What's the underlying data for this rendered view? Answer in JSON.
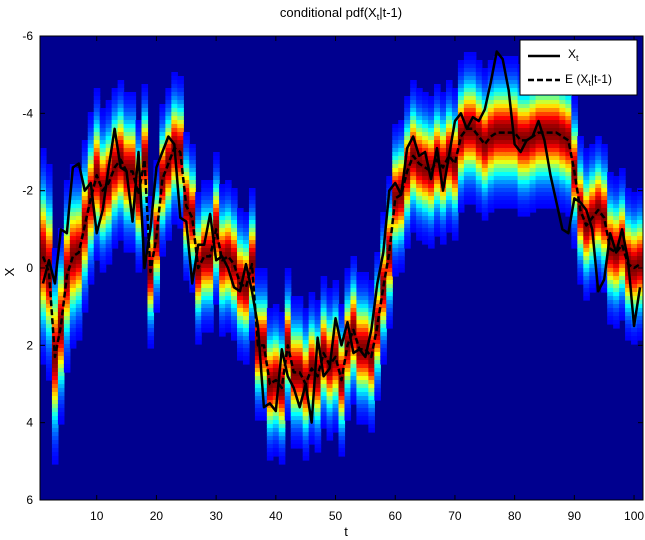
{
  "chart_data": {
    "type": "heatmap",
    "title": {
      "main": "conditional pdf(X",
      "sub1": "t",
      "mid": "|t-1)"
    },
    "xlabel": "t",
    "ylabel": "X",
    "xlim": [
      0.5,
      101.5
    ],
    "ylim": [
      6,
      -6
    ],
    "y_reversed": true,
    "x_ticks": [
      10,
      20,
      30,
      40,
      50,
      60,
      70,
      80,
      90,
      100
    ],
    "x_tick_labels": [
      "10",
      "20",
      "30",
      "40",
      "50",
      "60",
      "70",
      "80",
      "90",
      "100"
    ],
    "y_ticks": [
      -6,
      -4,
      -2,
      0,
      2,
      4,
      6
    ],
    "y_tick_labels": [
      "-6",
      "-4",
      "-2",
      "0",
      "2",
      "4",
      "6"
    ],
    "heatmap": {
      "colormap": "jet",
      "description_of_cells": "conditional density of X_t given t-1, centered on E(X_t|t-1)",
      "spread_sd": [
        1.0,
        1.0,
        1.0,
        0.9,
        0.9,
        0.85,
        0.8,
        0.8,
        0.8,
        0.8,
        0.75,
        0.75,
        0.75,
        0.75,
        0.75,
        0.75,
        0.7,
        0.7,
        0.7,
        0.7,
        0.7,
        0.7,
        0.7,
        0.7,
        0.7,
        0.7,
        0.7,
        0.7,
        0.7,
        0.7,
        0.7,
        0.7,
        0.7,
        0.7,
        0.7,
        0.7,
        0.7,
        0.7,
        0.7,
        0.7,
        0.7,
        0.7,
        0.7,
        0.7,
        0.7,
        0.7,
        0.7,
        0.7,
        0.7,
        0.7,
        0.7,
        0.7,
        0.7,
        0.7,
        0.7,
        0.7,
        0.7,
        0.7,
        0.7,
        0.7,
        0.7,
        0.7,
        0.7,
        0.7,
        0.7,
        0.7,
        0.7,
        0.7,
        0.7,
        0.7,
        0.7,
        0.7,
        0.7,
        0.7,
        0.7,
        0.7,
        0.7,
        0.7,
        0.7,
        0.7,
        0.7,
        0.7,
        0.7,
        0.7,
        0.7,
        0.7,
        0.7,
        0.7,
        0.7,
        0.7,
        0.7,
        0.7,
        0.7,
        0.7,
        0.7,
        0.7,
        0.7,
        0.7,
        0.7,
        0.7,
        0.7
      ]
    },
    "series": [
      {
        "name": "X_t",
        "style": "solid",
        "color": "#000000",
        "x": [
          1,
          2,
          3,
          4,
          5,
          6,
          7,
          8,
          9,
          10,
          11,
          12,
          13,
          14,
          15,
          16,
          17,
          18,
          19,
          20,
          21,
          22,
          23,
          24,
          25,
          26,
          27,
          28,
          29,
          30,
          31,
          32,
          33,
          34,
          35,
          36,
          37,
          38,
          39,
          40,
          41,
          42,
          43,
          44,
          45,
          46,
          47,
          48,
          49,
          50,
          51,
          52,
          53,
          54,
          55,
          56,
          57,
          58,
          59,
          60,
          61,
          62,
          63,
          64,
          65,
          66,
          67,
          68,
          69,
          70,
          71,
          72,
          73,
          74,
          75,
          76,
          77,
          78,
          79,
          80,
          81,
          82,
          83,
          84,
          85,
          86,
          87,
          88,
          89,
          90,
          91,
          92,
          93,
          94,
          95,
          96,
          97,
          98,
          99,
          100,
          101
        ],
        "y": [
          0.4,
          -0.2,
          0.4,
          -1.0,
          -0.9,
          -2.6,
          -2.7,
          -2.0,
          -2.2,
          -0.9,
          -1.5,
          -2.6,
          -3.6,
          -2.6,
          -2.5,
          -1.2,
          -3.0,
          0.0,
          -1.0,
          -2.6,
          -3.0,
          -3.4,
          -3.2,
          -1.3,
          -1.2,
          0.4,
          -0.6,
          -0.6,
          -1.4,
          -0.2,
          -0.3,
          0.0,
          0.5,
          0.6,
          -0.1,
          0.6,
          1.5,
          3.6,
          3.5,
          3.7,
          2.1,
          2.8,
          3.1,
          3.6,
          3.0,
          4.0,
          1.8,
          2.8,
          2.6,
          1.3,
          2.0,
          1.4,
          2.2,
          2.1,
          2.3,
          1.6,
          0.4,
          -0.4,
          -2.0,
          -2.2,
          -1.9,
          -3.1,
          -3.4,
          -2.9,
          -3.0,
          -2.3,
          -3.1,
          -2.0,
          -2.9,
          -3.8,
          -4.0,
          -3.6,
          -3.9,
          -3.8,
          -4.1,
          -4.8,
          -5.6,
          -5.4,
          -4.6,
          -3.2,
          -3.0,
          -3.3,
          -3.4,
          -3.8,
          -3.3,
          -2.4,
          -1.7,
          -1.0,
          -0.9,
          -1.8,
          -1.7,
          -1.5,
          -1.0,
          0.6,
          0.3,
          -0.9,
          -0.4,
          -1.0,
          -0.2,
          1.5,
          0.5
        ]
      },
      {
        "name": "E (X_t|t-1)",
        "style": "dashed",
        "color": "#000000",
        "x": [
          1,
          2,
          3,
          4,
          5,
          6,
          7,
          8,
          9,
          10,
          11,
          12,
          13,
          14,
          15,
          16,
          17,
          18,
          19,
          20,
          21,
          22,
          23,
          24,
          25,
          26,
          27,
          28,
          29,
          30,
          31,
          32,
          33,
          34,
          35,
          36,
          37,
          38,
          39,
          40,
          41,
          42,
          43,
          44,
          45,
          46,
          47,
          48,
          49,
          50,
          51,
          52,
          53,
          54,
          55,
          56,
          57,
          58,
          59,
          60,
          61,
          62,
          63,
          64,
          65,
          66,
          67,
          68,
          69,
          70,
          71,
          72,
          73,
          74,
          75,
          76,
          77,
          78,
          79,
          80,
          81,
          82,
          83,
          84,
          85,
          86,
          87,
          88,
          89,
          90,
          91,
          92,
          93,
          94,
          95,
          96,
          97,
          98,
          99,
          100,
          101
        ],
        "y": [
          -0.3,
          0.1,
          2.3,
          1.5,
          0.2,
          -0.3,
          -0.4,
          -1.1,
          -1.8,
          -2.4,
          -2.0,
          -2.2,
          -2.6,
          -2.8,
          -2.5,
          -2.5,
          -1.9,
          -2.8,
          0.1,
          -0.8,
          -2.3,
          -2.7,
          -3.1,
          -3.0,
          -1.6,
          -1.3,
          0.0,
          -0.3,
          -0.3,
          -1.0,
          -0.2,
          -0.3,
          -0.1,
          0.4,
          0.5,
          -0.1,
          2.0,
          2.0,
          3.0,
          2.9,
          3.1,
          2.0,
          2.7,
          2.7,
          3.0,
          2.6,
          2.8,
          2.2,
          2.5,
          2.3,
          2.9,
          2.0,
          1.6,
          2.1,
          2.1,
          2.3,
          1.5,
          0.5,
          -0.4,
          -1.8,
          -1.9,
          -2.5,
          -2.9,
          -2.7,
          -2.6,
          -2.5,
          -2.8,
          -2.6,
          -2.9,
          -2.7,
          -3.4,
          -3.6,
          -3.6,
          -3.4,
          -3.2,
          -3.4,
          -3.5,
          -3.5,
          -3.5,
          -3.5,
          -3.3,
          -3.3,
          -3.4,
          -3.5,
          -3.5,
          -3.5,
          -3.5,
          -3.4,
          -3.3,
          -2.5,
          -1.5,
          -1.1,
          -1.3,
          -1.5,
          -1.3,
          -0.5,
          -0.4,
          -0.6,
          -0.1,
          0.0,
          -0.1
        ]
      }
    ],
    "legend": {
      "placement": "top-right",
      "entries": [
        {
          "main": "X",
          "sub": "t",
          "tail": "",
          "style": "solid"
        },
        {
          "main": "E (X",
          "sub": "t",
          "tail": "|t-1)",
          "style": "dashed"
        }
      ]
    },
    "grid": false
  }
}
